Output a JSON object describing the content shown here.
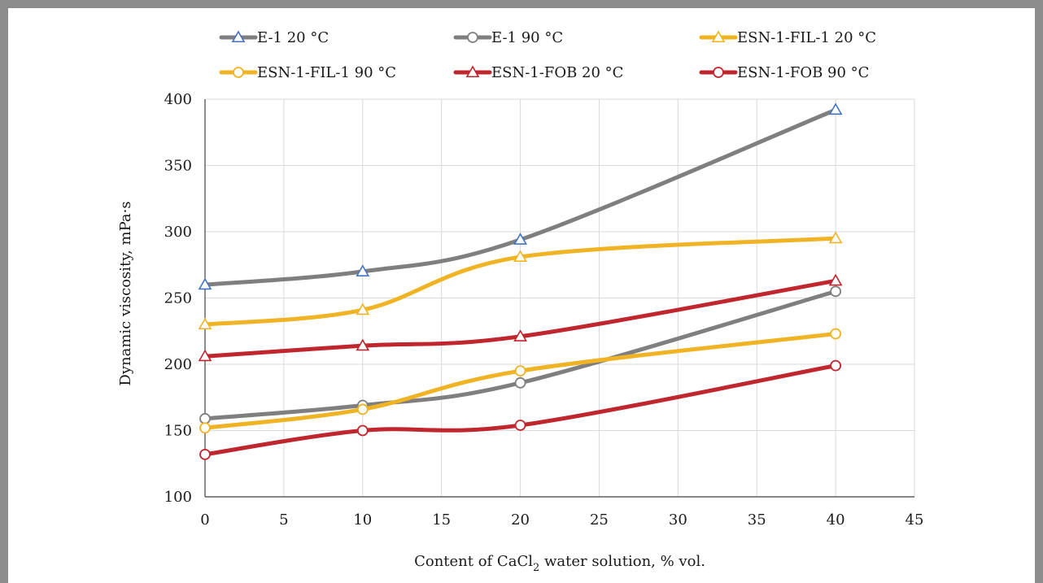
{
  "chart_data": {
    "type": "line",
    "xlabel_parts": [
      "Content of CaCl",
      "2",
      " water solution, % vol."
    ],
    "ylabel": "Dynamic viscosity, mPa·s",
    "xlim": [
      0,
      45
    ],
    "ylim": [
      100,
      400
    ],
    "x_ticks": [
      "0",
      "5",
      "10",
      "15",
      "20",
      "25",
      "30",
      "35",
      "40",
      "45"
    ],
    "y_ticks": [
      "100",
      "150",
      "200",
      "250",
      "300",
      "350",
      "400"
    ],
    "grid": true,
    "legend_position": "top",
    "x": [
      0,
      10,
      20,
      40
    ],
    "series": [
      {
        "name": "E-1 20 °C",
        "values": [
          260,
          270,
          294,
          392
        ],
        "color": "#7f7f7f",
        "marker": "triangle",
        "marker_color": "#4472c4"
      },
      {
        "name": "E-1 90 °C",
        "values": [
          159,
          169,
          186,
          255
        ],
        "color": "#7f7f7f",
        "marker": "circle",
        "marker_color": "#7f7f7f"
      },
      {
        "name": "ESN-1-FIL-1 20 °C",
        "values": [
          230,
          241,
          281,
          295
        ],
        "color": "#f0b323",
        "marker": "triangle",
        "marker_color": "#f0b323"
      },
      {
        "name": "ESN-1-FIL-1 90 °C",
        "values": [
          152,
          166,
          195,
          223
        ],
        "color": "#f0b323",
        "marker": "circle",
        "marker_color": "#f0b323"
      },
      {
        "name": "ESN-1-FOB 20 °C",
        "values": [
          206,
          214,
          221,
          263
        ],
        "color": "#c0262d",
        "marker": "triangle",
        "marker_color": "#c0262d"
      },
      {
        "name": "ESN-1-FOB 90 °C",
        "values": [
          132,
          150,
          154,
          199
        ],
        "color": "#c0262d",
        "marker": "circle",
        "marker_color": "#c0262d"
      }
    ]
  }
}
